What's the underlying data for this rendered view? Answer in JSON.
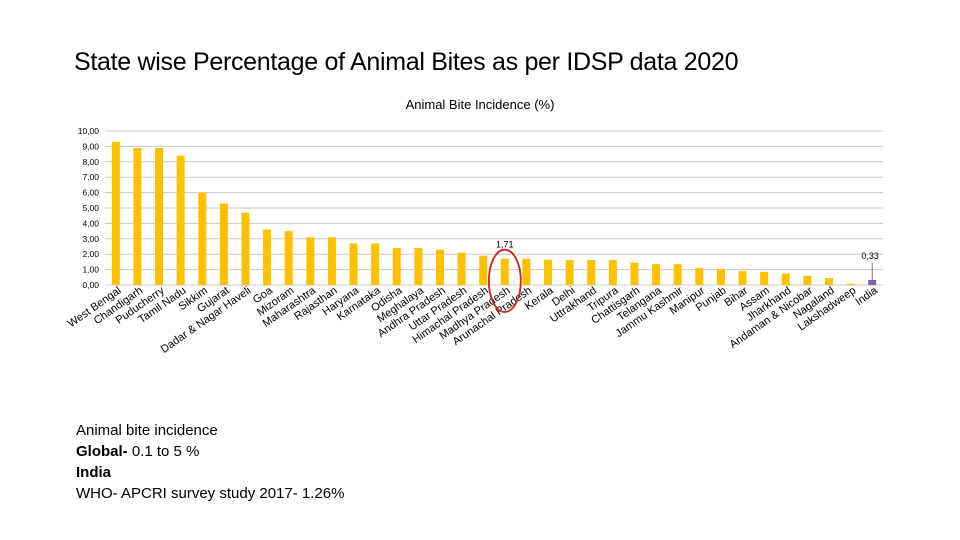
{
  "slide": {
    "title": "State wise Percentage of Animal Bites as per IDSP data 2020"
  },
  "chart_data": {
    "type": "bar",
    "title": "Animal Bite Incidence (%)",
    "xlabel": "",
    "ylabel": "",
    "ylim": [
      0,
      10
    ],
    "ytick_step": 1,
    "ytick_labels": [
      "0,00",
      "1,00",
      "2,00",
      "3,00",
      "4,00",
      "5,00",
      "6,00",
      "7,00",
      "8,00",
      "9,00",
      "10,00"
    ],
    "grid": true,
    "categories": [
      "West Bengal",
      "Chandigarh",
      "Puducherry",
      "Tamil Nadu",
      "Sikkim",
      "Gujarat",
      "Dadar & Nagar Haveli",
      "Goa",
      "Mizoram",
      "Maharashtra",
      "Rajasthan",
      "Haryana",
      "Karnataka",
      "Odisha",
      "Meghalaya",
      "Andhra Pradesh",
      "Uttar Pradesh",
      "Himachal Pradesh",
      "Madhya Pradesh",
      "Arunachal Pradesh",
      "Kerala",
      "Delhi",
      "Uttrakhand",
      "Tripura",
      "Chattisgarh",
      "Telangana",
      "Jammu Kashmir",
      "Manipur",
      "Punjab",
      "Bihar",
      "Assam",
      "Jharkhand",
      "Andaman & Nicobar",
      "Nagaland",
      "Lakshadweep",
      "India"
    ],
    "values": [
      9.3,
      8.9,
      8.9,
      8.4,
      6.0,
      5.3,
      4.7,
      3.6,
      3.5,
      3.1,
      3.1,
      2.7,
      2.7,
      2.4,
      2.4,
      2.3,
      2.1,
      1.9,
      1.71,
      1.7,
      1.65,
      1.62,
      1.62,
      1.62,
      1.45,
      1.35,
      1.35,
      1.1,
      1.05,
      0.9,
      0.85,
      0.75,
      0.6,
      0.45,
      0.08,
      0.33
    ],
    "colors": {
      "bar": "#FFC000",
      "india_bar": "#7F5FA8",
      "grid": "#C8C8C8",
      "highlight_ellipse": "#D32020"
    },
    "data_labels": [
      {
        "category": "Madhya Pradesh",
        "text": "1,71"
      },
      {
        "category": "India",
        "text": "0,33"
      }
    ],
    "highlight": {
      "category": "Madhya Pradesh",
      "shape": "ellipse"
    }
  },
  "notes": {
    "line1": "Animal bite incidence",
    "line2_label": "Global-",
    "line2_value": " 0.1 to 5 %",
    "line3": "India",
    "line4": "WHO- APCRI survey study 2017- 1.26%"
  }
}
